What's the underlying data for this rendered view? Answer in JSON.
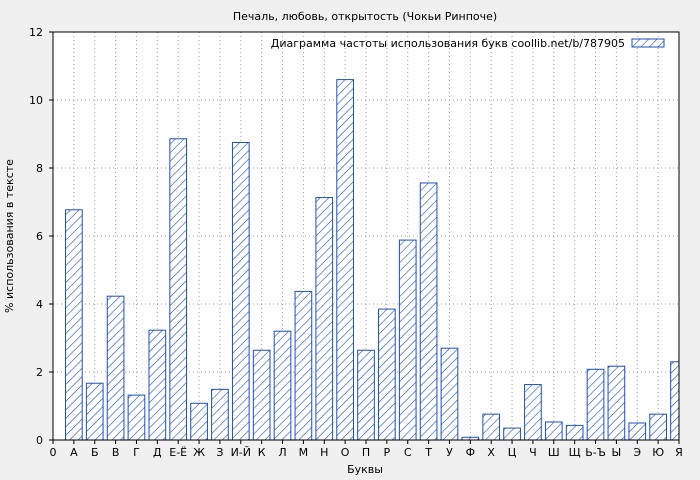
{
  "chart_data": {
    "type": "bar",
    "title": "Печаль, любовь, открытость (Чокьи Ринпоче)",
    "xlabel": "Буквы",
    "ylabel": "% использования в тексте",
    "ylim": [
      0,
      12
    ],
    "yticks": [
      0,
      2,
      4,
      6,
      8,
      10,
      12
    ],
    "grid": true,
    "legend_position": "top-right",
    "bar_color": "#1f4fb5",
    "hatch": "diagonal",
    "x_tick_labels": [
      "0",
      "А",
      "Б",
      "В",
      "Г",
      "Д",
      "Е-Ё",
      "Ж",
      "З",
      "И-Й",
      "К",
      "Л",
      "М",
      "Н",
      "О",
      "П",
      "Р",
      "С",
      "Т",
      "У",
      "Ф",
      "Х",
      "Ц",
      "Ч",
      "Ш",
      "Щ",
      "Ь-Ъ",
      "Ы",
      "Э",
      "Ю",
      "Я"
    ],
    "categories": [
      "А",
      "Б",
      "В",
      "Г",
      "Д",
      "Е-Ё",
      "Ж",
      "З",
      "И-Й",
      "К",
      "Л",
      "М",
      "Н",
      "О",
      "П",
      "Р",
      "С",
      "Т",
      "У",
      "Ф",
      "Х",
      "Ц",
      "Ч",
      "Ш",
      "Щ",
      "Ь-Ъ",
      "Ы",
      "Э",
      "Ю",
      "Я"
    ],
    "series": [
      {
        "name": "Диаграмма частоты использования букв coollib.net/b/787905",
        "values": [
          6.77,
          1.67,
          4.23,
          1.32,
          3.23,
          8.86,
          1.08,
          1.49,
          8.75,
          2.64,
          3.2,
          4.37,
          7.13,
          10.6,
          2.64,
          3.85,
          5.88,
          7.56,
          2.7,
          0.08,
          0.76,
          0.35,
          1.63,
          0.53,
          0.43,
          2.08,
          2.17,
          0.5,
          0.76,
          2.3
        ]
      }
    ]
  }
}
